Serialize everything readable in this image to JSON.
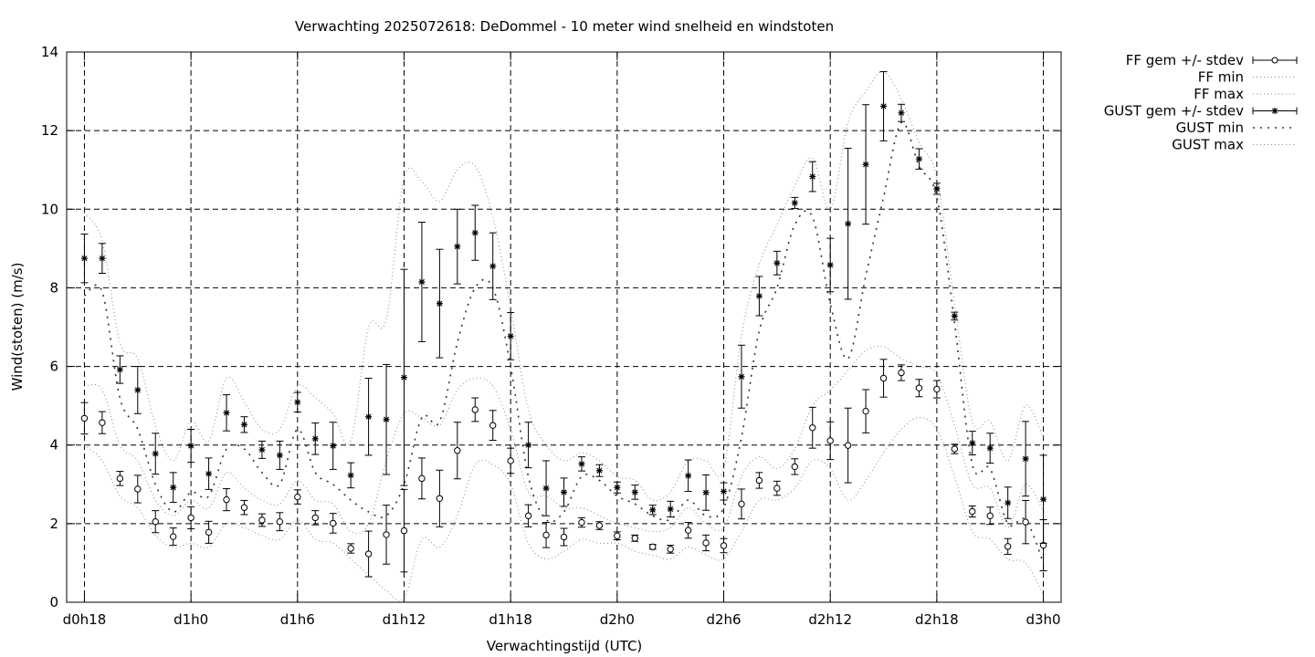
{
  "chart_data": {
    "type": "line",
    "title": "Verwachting 2025072618: DeDommel - 10 meter wind snelheid en windstoten",
    "xlabel": "Verwachtingstijd (UTC)",
    "ylabel": "Wind(stoten) (m/s)",
    "xlim": [
      -1,
      55
    ],
    "ylim": [
      0,
      14
    ],
    "grid": true,
    "legend_position": "outside-right",
    "x_ticks": [
      {
        "x": 0,
        "label": "d0h18"
      },
      {
        "x": 6,
        "label": "d1h0"
      },
      {
        "x": 12,
        "label": "d1h6"
      },
      {
        "x": 18,
        "label": "d1h12"
      },
      {
        "x": 24,
        "label": "d1h18"
      },
      {
        "x": 30,
        "label": "d2h0"
      },
      {
        "x": 36,
        "label": "d2h6"
      },
      {
        "x": 42,
        "label": "d2h12"
      },
      {
        "x": 48,
        "label": "d2h18"
      },
      {
        "x": 54,
        "label": "d3h0"
      }
    ],
    "y_ticks": [
      {
        "y": 0,
        "label": "0"
      },
      {
        "y": 2,
        "label": "2"
      },
      {
        "y": 4,
        "label": "4"
      },
      {
        "y": 6,
        "label": "6"
      },
      {
        "y": 8,
        "label": "8"
      },
      {
        "y": 10,
        "label": "10"
      },
      {
        "y": 12,
        "label": "12"
      },
      {
        "y": 14,
        "label": "14"
      }
    ],
    "x": [
      0,
      1,
      2,
      3,
      4,
      5,
      6,
      7,
      8,
      9,
      10,
      11,
      12,
      13,
      14,
      15,
      16,
      17,
      18,
      19,
      20,
      21,
      22,
      23,
      24,
      25,
      26,
      27,
      28,
      29,
      30,
      31,
      32,
      33,
      34,
      35,
      36,
      37,
      38,
      39,
      40,
      41,
      42,
      43,
      44,
      45,
      46,
      47,
      48,
      49,
      50,
      51,
      52,
      53,
      54
    ],
    "series": [
      {
        "name": "FF gem +/- stdev",
        "style": "errorbar-circle",
        "values": [
          4.68,
          4.57,
          3.15,
          2.88,
          2.05,
          1.67,
          2.15,
          1.78,
          2.61,
          2.41,
          2.09,
          2.05,
          2.68,
          2.15,
          2.01,
          1.37,
          1.23,
          1.72,
          1.82,
          3.15,
          2.64,
          3.86,
          4.9,
          4.5,
          3.6,
          2.2,
          1.71,
          1.66,
          2.03,
          1.95,
          1.69,
          1.63,
          1.41,
          1.35,
          1.83,
          1.51,
          1.44,
          2.5,
          3.1,
          2.9,
          3.45,
          4.44,
          4.11,
          3.99,
          4.86,
          5.7,
          5.84,
          5.45,
          5.42,
          3.9,
          2.31,
          2.2,
          1.42,
          2.04,
          1.45
        ],
        "stdev": [
          0.4,
          0.28,
          0.18,
          0.35,
          0.28,
          0.22,
          0.28,
          0.28,
          0.28,
          0.18,
          0.16,
          0.23,
          0.18,
          0.18,
          0.25,
          0.12,
          0.58,
          0.75,
          1.05,
          0.52,
          0.72,
          0.72,
          0.3,
          0.38,
          0.32,
          0.28,
          0.32,
          0.22,
          0.12,
          0.1,
          0.1,
          0.08,
          0.06,
          0.1,
          0.2,
          0.2,
          0.18,
          0.38,
          0.2,
          0.18,
          0.2,
          0.52,
          0.48,
          0.95,
          0.55,
          0.48,
          0.2,
          0.22,
          0.22,
          0.12,
          0.14,
          0.22,
          0.2,
          0.55,
          0.65
        ]
      },
      {
        "name": "FF min",
        "style": "dotted",
        "values": [
          4.0,
          3.6,
          2.7,
          2.4,
          1.7,
          1.4,
          1.5,
          1.4,
          2.0,
          1.9,
          1.7,
          1.6,
          2.1,
          1.6,
          1.5,
          1.1,
          0.7,
          0.3,
          0.1,
          1.6,
          1.4,
          2.2,
          3.5,
          3.5,
          3.0,
          1.5,
          1.1,
          1.3,
          1.6,
          1.5,
          1.5,
          1.3,
          1.2,
          1.1,
          1.4,
          1.2,
          1.1,
          1.8,
          2.6,
          2.6,
          2.9,
          3.6,
          3.4,
          2.6,
          3.1,
          3.8,
          4.4,
          4.7,
          4.4,
          3.2,
          1.8,
          1.6,
          1.1,
          1.0,
          0.2
        ]
      },
      {
        "name": "FF max",
        "style": "dotted",
        "values": [
          5.5,
          5.4,
          4.0,
          3.6,
          2.6,
          2.2,
          2.6,
          2.4,
          3.3,
          2.9,
          2.6,
          2.5,
          3.1,
          2.6,
          2.5,
          1.8,
          2.0,
          3.6,
          4.8,
          4.7,
          4.5,
          5.4,
          5.7,
          5.5,
          4.4,
          2.8,
          2.7,
          2.4,
          2.4,
          2.2,
          2.0,
          1.9,
          1.8,
          1.9,
          2.4,
          2.0,
          1.9,
          3.2,
          3.7,
          3.4,
          3.9,
          5.0,
          5.4,
          5.9,
          6.4,
          6.5,
          6.2,
          6.0,
          5.8,
          4.5,
          3.0,
          2.9,
          1.9,
          3.0,
          2.3
        ]
      },
      {
        "name": "GUST gem +/- stdev",
        "style": "errorbar-star",
        "values": [
          8.75,
          8.75,
          5.92,
          5.4,
          3.78,
          2.92,
          3.98,
          3.27,
          4.82,
          4.52,
          3.88,
          3.74,
          5.09,
          4.16,
          3.98,
          3.23,
          4.72,
          4.65,
          5.72,
          8.15,
          7.6,
          9.05,
          9.4,
          8.55,
          6.77,
          4.0,
          2.9,
          2.8,
          3.52,
          3.35,
          2.92,
          2.8,
          2.35,
          2.37,
          3.22,
          2.79,
          2.82,
          5.74,
          7.79,
          8.63,
          10.16,
          10.83,
          8.58,
          9.63,
          11.14,
          12.62,
          12.45,
          11.28,
          10.52,
          7.28,
          4.05,
          3.92,
          2.53,
          3.65,
          2.62
        ],
        "stdev": [
          0.62,
          0.38,
          0.35,
          0.6,
          0.52,
          0.38,
          0.42,
          0.4,
          0.46,
          0.2,
          0.22,
          0.36,
          0.25,
          0.4,
          0.6,
          0.32,
          0.98,
          1.4,
          2.75,
          1.52,
          1.38,
          0.95,
          0.7,
          0.85,
          0.6,
          0.58,
          0.7,
          0.36,
          0.18,
          0.15,
          0.14,
          0.18,
          0.12,
          0.2,
          0.4,
          0.45,
          0.22,
          0.8,
          0.5,
          0.3,
          0.14,
          0.38,
          0.68,
          1.92,
          1.52,
          0.88,
          0.22,
          0.26,
          0.14,
          0.1,
          0.3,
          0.38,
          0.4,
          0.95,
          1.12
        ]
      },
      {
        "name": "GUST min",
        "style": "dotted-sparse",
        "values": [
          7.8,
          7.9,
          5.2,
          4.4,
          3.0,
          2.3,
          2.8,
          2.7,
          3.9,
          3.9,
          3.3,
          3.0,
          4.4,
          3.3,
          3.0,
          2.6,
          2.3,
          2.2,
          3.0,
          4.7,
          4.6,
          6.6,
          8.0,
          8.0,
          6.0,
          3.2,
          2.1,
          2.3,
          3.2,
          3.1,
          2.7,
          2.5,
          2.2,
          2.1,
          2.6,
          2.2,
          2.4,
          4.2,
          6.9,
          8.0,
          9.6,
          9.8,
          7.6,
          6.2,
          8.3,
          10.3,
          12.2,
          11.1,
          10.3,
          7.1,
          3.5,
          3.4,
          2.0,
          2.1,
          1.0
        ]
      },
      {
        "name": "GUST max",
        "style": "dotted",
        "values": [
          9.9,
          9.2,
          6.6,
          6.2,
          4.5,
          3.6,
          4.6,
          4.1,
          5.7,
          5.1,
          4.4,
          4.4,
          5.5,
          5.2,
          4.8,
          4.1,
          7.0,
          7.2,
          10.8,
          10.7,
          10.2,
          11.0,
          11.1,
          9.8,
          7.5,
          4.9,
          4.0,
          3.6,
          3.8,
          3.6,
          3.2,
          3.1,
          2.6,
          2.8,
          3.6,
          3.6,
          3.4,
          6.8,
          8.6,
          9.6,
          10.6,
          11.3,
          10.0,
          12.2,
          13.0,
          13.5,
          12.8,
          11.7,
          10.8,
          7.6,
          4.6,
          4.6,
          3.6,
          5.0,
          4.2
        ]
      }
    ]
  }
}
